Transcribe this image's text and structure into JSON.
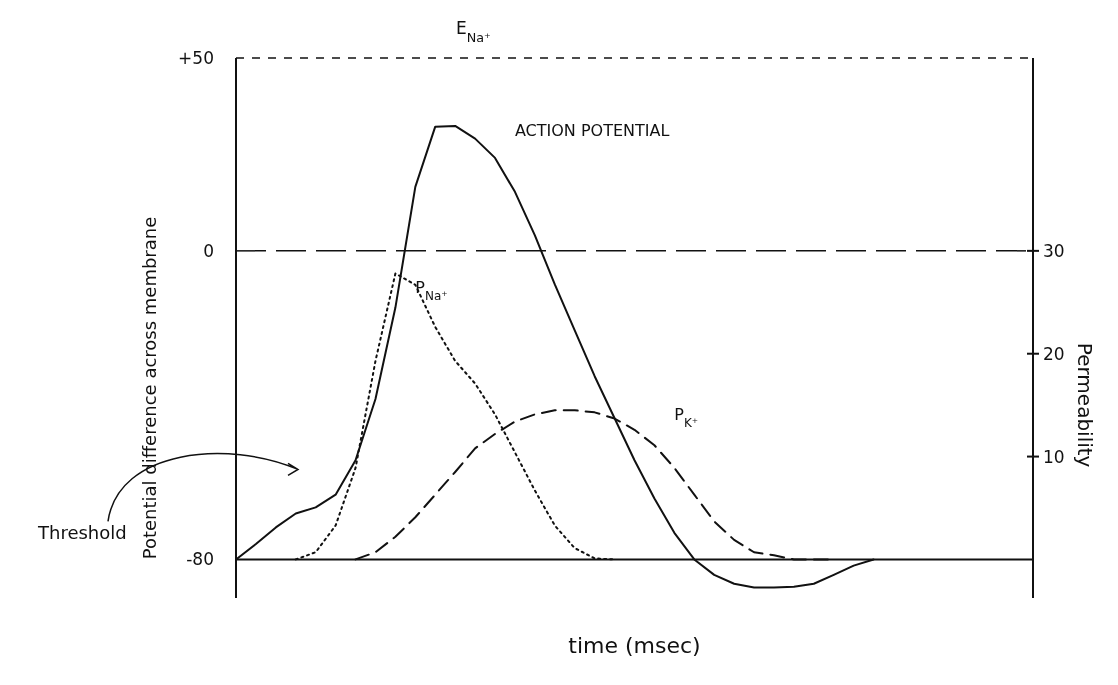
{
  "chart_data": {
    "type": "line",
    "xlabel": "time (msec)",
    "ylabel": "Potential difference across membrane",
    "y2label": "Permeability",
    "categories": [
      null,
      null,
      null,
      null,
      null,
      null,
      null,
      null,
      null,
      null,
      null,
      null,
      null,
      null,
      null,
      null,
      null,
      null,
      null,
      null,
      null,
      null,
      null,
      null,
      null,
      null,
      null,
      null,
      null,
      null,
      null,
      null,
      null,
      null,
      null,
      null,
      null,
      null,
      null,
      null,
      null
    ],
    "ylim": [
      -90,
      50
    ],
    "yticks": [
      {
        "value": 50,
        "label": "+50"
      },
      0,
      -80
    ],
    "y2lim": [
      -3.75,
      48.75
    ],
    "y2ticks": [
      10,
      20,
      30
    ],
    "series": [
      {
        "name": "ACTION POTENTIAL",
        "color": "#111111",
        "line_style": "solid",
        "values": [
          -80,
          -76,
          -71.7,
          -68.1,
          -66.5,
          -63.2,
          -54.3,
          -38.4,
          -14.7,
          16.6,
          32.2,
          32.4,
          29.1,
          24.1,
          15.3,
          4,
          -8.7,
          -20.6,
          -32.5,
          -43.4,
          -54.3,
          -64.2,
          -73.1,
          -80,
          -84,
          -86.3,
          -87.3,
          -87.3,
          -87.1,
          -86.3,
          -84,
          -81.6,
          -80,
          null,
          null,
          null,
          null,
          null,
          null,
          null,
          null
        ]
      },
      {
        "name": "P$_{Na⁺}$",
        "color": "#111111",
        "line_style": "dotted",
        "axis": "y2",
        "values": [
          null,
          null,
          null,
          0,
          0.7,
          3.3,
          8.9,
          19.3,
          27.8,
          26.7,
          22.6,
          19.3,
          17.1,
          14.1,
          10.4,
          6.7,
          3.3,
          1.1,
          0.1,
          0,
          null,
          null,
          null,
          null,
          null,
          null,
          null,
          null,
          null,
          null,
          null,
          null,
          null,
          null,
          null,
          null,
          null,
          null,
          null,
          null,
          null
        ]
      },
      {
        "name": "P$_{K⁺}$",
        "color": "#111111",
        "line_style": "dashed",
        "axis": "y2",
        "values": [
          null,
          null,
          null,
          null,
          null,
          null,
          0,
          0.7,
          2.2,
          4.1,
          6.3,
          8.5,
          10.8,
          12.2,
          13.4,
          14.1,
          14.5,
          14.5,
          14.3,
          13.7,
          12.6,
          11.1,
          8.9,
          6.3,
          3.7,
          1.9,
          0.7,
          0.4,
          0,
          0,
          0,
          null,
          null,
          null,
          null,
          null,
          null,
          null,
          null,
          null,
          null
        ]
      }
    ],
    "ref_lines": [
      {
        "axis": "y",
        "value": 50,
        "label": "E$_{Na⁺}$",
        "line_style": "dashed"
      },
      {
        "axis": "y",
        "value": 0,
        "label": null,
        "line_style": "dashed"
      }
    ],
    "annotations": [
      "Threshold"
    ]
  }
}
